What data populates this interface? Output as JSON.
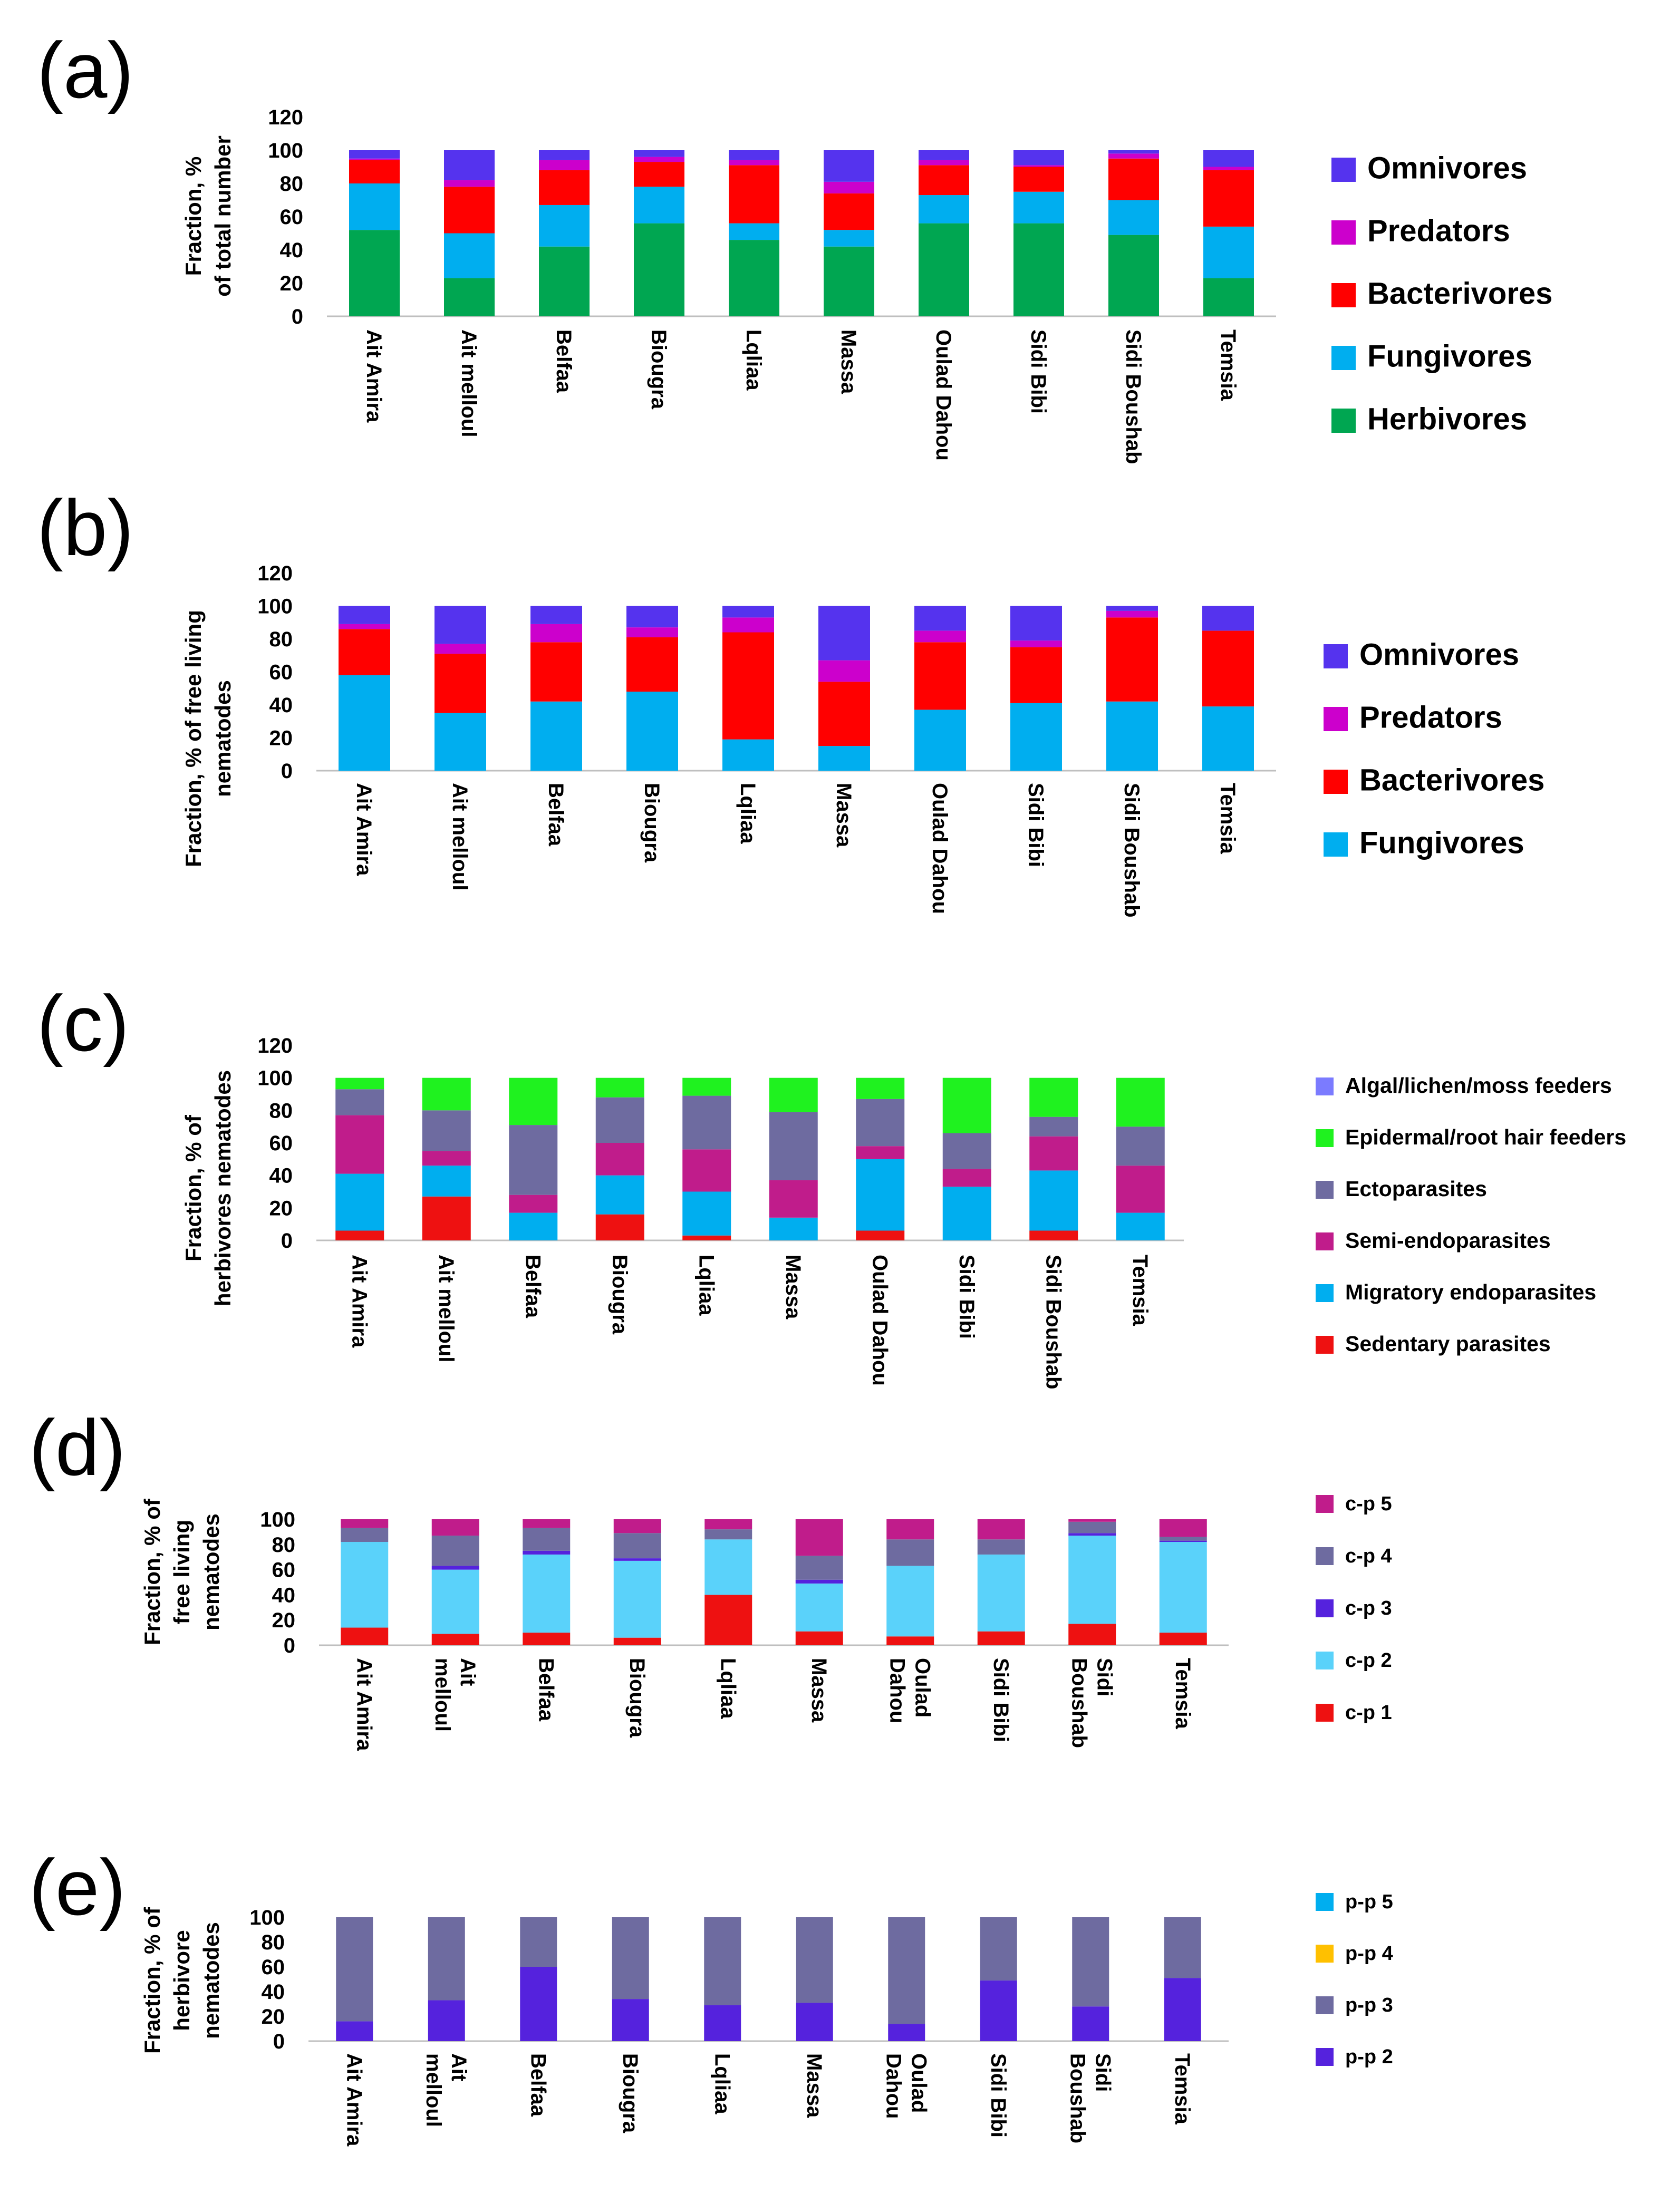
{
  "chart_data": [
    {
      "panel": "(a)",
      "type": "bar",
      "stacked": true,
      "ylabel": [
        "Fraction, %",
        "of total number"
      ],
      "ylim": [
        0,
        120
      ],
      "yticks": [
        0,
        20,
        40,
        60,
        80,
        100,
        120
      ],
      "categories": [
        "Ait Amira",
        "Ait melloul",
        "Belfaa",
        "Biougra",
        "Lqliaa",
        "Massa",
        "Oulad Dahou",
        "Sidi Bibi",
        "Sidi Boushab",
        "Temsia"
      ],
      "series": [
        {
          "name": "Herbivores",
          "color": "#00A651",
          "values": [
            52,
            23,
            42,
            56,
            46,
            42,
            56,
            56,
            49,
            23
          ]
        },
        {
          "name": "Fungivores",
          "color": "#00AEEF",
          "values": [
            28,
            27,
            25,
            22,
            10,
            10,
            17,
            19,
            21,
            31
          ]
        },
        {
          "name": "Bacterivores",
          "color": "#FF0000",
          "values": [
            14,
            28,
            21,
            15,
            35,
            22,
            18,
            15,
            25,
            34
          ]
        },
        {
          "name": "Predators",
          "color": "#CC00CC",
          "values": [
            1,
            4,
            6,
            3,
            3,
            7,
            3,
            1,
            3,
            2
          ]
        },
        {
          "name": "Omnivores",
          "color": "#5533EE",
          "values": [
            5,
            18,
            6,
            4,
            6,
            19,
            6,
            9,
            2,
            10
          ]
        }
      ],
      "legend_order": [
        "Omnivores",
        "Predators",
        "Bacterivores",
        "Fungivores",
        "Herbivores"
      ]
    },
    {
      "panel": "(b)",
      "type": "bar",
      "stacked": true,
      "ylabel": [
        "Fraction, % of free living",
        "nematodes"
      ],
      "ylim": [
        0,
        120
      ],
      "yticks": [
        0,
        20,
        40,
        60,
        80,
        100,
        120
      ],
      "categories": [
        "Ait Amira",
        "Ait melloul",
        "Belfaa",
        "Biougra",
        "Lqliaa",
        "Massa",
        "Oulad Dahou",
        "Sidi Bibi",
        "Sidi Boushab",
        "Temsia"
      ],
      "series": [
        {
          "name": "Fungivores",
          "color": "#00AEEF",
          "values": [
            58,
            35,
            42,
            48,
            19,
            15,
            37,
            41,
            42,
            39
          ]
        },
        {
          "name": "Bacterivores",
          "color": "#FF0000",
          "values": [
            28,
            36,
            36,
            33,
            65,
            39,
            41,
            34,
            51,
            46
          ]
        },
        {
          "name": "Predators",
          "color": "#CC00CC",
          "values": [
            3,
            6,
            11,
            6,
            9,
            13,
            7,
            4,
            4,
            0
          ]
        },
        {
          "name": "Omnivores",
          "color": "#5533EE",
          "values": [
            11,
            23,
            11,
            13,
            7,
            33,
            15,
            21,
            3,
            15
          ]
        }
      ],
      "legend_order": [
        "Omnivores",
        "Predators",
        "Bacterivores",
        "Fungivores"
      ]
    },
    {
      "panel": "(c)",
      "type": "bar",
      "stacked": true,
      "ylabel": [
        "Fraction, % of",
        "herbivores nematodes"
      ],
      "ylim": [
        0,
        120
      ],
      "yticks": [
        0,
        20,
        40,
        60,
        80,
        100,
        120
      ],
      "categories": [
        "Ait Amira",
        "Ait melloul",
        "Belfaa",
        "Biougra",
        "Lqliaa",
        "Massa",
        "Oulad Dahou",
        "Sidi Bibi",
        "Sidi Boushab",
        "Temsia"
      ],
      "series": [
        {
          "name": "Sedentary parasites",
          "color": "#EE1111",
          "values": [
            6,
            27,
            0,
            16,
            3,
            0,
            6,
            0,
            6,
            0
          ]
        },
        {
          "name": "Migratory endoparasites",
          "color": "#00AEEF",
          "values": [
            35,
            19,
            17,
            24,
            27,
            14,
            44,
            33,
            37,
            17
          ]
        },
        {
          "name": "Semi-endoparasites",
          "color": "#C01C8B",
          "values": [
            36,
            9,
            11,
            20,
            26,
            23,
            8,
            11,
            21,
            29
          ]
        },
        {
          "name": "Ectoparasites",
          "color": "#6E6BA0",
          "values": [
            16,
            25,
            43,
            28,
            33,
            42,
            29,
            22,
            12,
            24
          ]
        },
        {
          "name": "Epidermal/root hair feeders",
          "color": "#1FF21F",
          "values": [
            7,
            20,
            29,
            12,
            11,
            21,
            13,
            34,
            24,
            30
          ]
        },
        {
          "name": "Algal/lichen/moss feeders",
          "color": "#7B7BFF",
          "values": [
            0,
            0,
            0,
            0,
            0,
            0,
            0,
            0,
            0,
            0
          ]
        }
      ],
      "legend_order": [
        "Algal/lichen/moss feeders",
        "Epidermal/root hair feeders",
        "Ectoparasites",
        "Semi-endoparasites",
        "Migratory endoparasites",
        "Sedentary parasites"
      ]
    },
    {
      "panel": "(d)",
      "type": "bar",
      "stacked": true,
      "ylabel": [
        "Fraction, % of",
        "free living",
        "nematodes"
      ],
      "ylim": [
        0,
        100
      ],
      "yticks": [
        0,
        20,
        40,
        60,
        80,
        100
      ],
      "categories": [
        "Ait Amira",
        "Ait melloul",
        "Belfaa",
        "Biougra",
        "Lqliaa",
        "Massa",
        "Oulad Dahou",
        "Sidi Bibi",
        "Sidi Boushab",
        "Temsia"
      ],
      "category_lines": [
        [
          "Ait Amira"
        ],
        [
          "Ait",
          "melloul"
        ],
        [
          "Belfaa"
        ],
        [
          "Biougra"
        ],
        [
          "Lqliaa"
        ],
        [
          "Massa"
        ],
        [
          "Oulad",
          "Dahou"
        ],
        [
          "Sidi Bibi"
        ],
        [
          "Sidi",
          "Boushab"
        ],
        [
          "Temsia"
        ]
      ],
      "series": [
        {
          "name": "c-p 1",
          "color": "#EE1111",
          "values": [
            14,
            9,
            10,
            6,
            40,
            11,
            7,
            11,
            17,
            10
          ]
        },
        {
          "name": "c-p 2",
          "color": "#5AD2FA",
          "values": [
            68,
            51,
            62,
            61,
            44,
            38,
            56,
            61,
            70,
            72
          ]
        },
        {
          "name": "c-p 3",
          "color": "#5522DD",
          "values": [
            0,
            3,
            3,
            2,
            0,
            3,
            0,
            0,
            2,
            1
          ]
        },
        {
          "name": "c-p 4",
          "color": "#6E6BA0",
          "values": [
            11,
            24,
            18,
            20,
            8,
            19,
            21,
            12,
            9,
            3
          ]
        },
        {
          "name": "c-p 5",
          "color": "#C01C8B",
          "values": [
            7,
            13,
            7,
            11,
            8,
            29,
            16,
            16,
            2,
            14
          ]
        }
      ],
      "legend_order": [
        "c-p 5",
        "c-p 4",
        "c-p 3",
        "c-p 2",
        "c-p 1"
      ]
    },
    {
      "panel": "(e)",
      "type": "bar",
      "stacked": true,
      "ylabel": [
        "Fraction, % of",
        "herbivore",
        "nematodes"
      ],
      "ylim": [
        0,
        100
      ],
      "yticks": [
        0,
        20,
        40,
        60,
        80,
        100
      ],
      "categories": [
        "Ait Amira",
        "Ait melloul",
        "Belfaa",
        "Biougra",
        "Lqliaa",
        "Massa",
        "Oulad Dahou",
        "Sidi Bibi",
        "Sidi Boushab",
        "Temsia"
      ],
      "category_lines": [
        [
          "Ait Amira"
        ],
        [
          "Ait",
          "melloul"
        ],
        [
          "Belfaa"
        ],
        [
          "Biougra"
        ],
        [
          "Lqliaa"
        ],
        [
          "Massa"
        ],
        [
          "Oulad",
          "Dahou"
        ],
        [
          "Sidi Bibi"
        ],
        [
          "Sidi",
          "Boushab"
        ],
        [
          "Temsia"
        ]
      ],
      "series": [
        {
          "name": "p-p 2",
          "color": "#5522DD",
          "values": [
            16,
            33,
            60,
            34,
            29,
            31,
            14,
            49,
            28,
            51
          ]
        },
        {
          "name": "p-p 3",
          "color": "#6E6BA0",
          "values": [
            84,
            67,
            40,
            66,
            71,
            69,
            86,
            51,
            72,
            49
          ]
        },
        {
          "name": "p-p 4",
          "color": "#FFC000",
          "values": [
            0,
            0,
            0,
            0,
            0,
            0,
            0,
            0,
            0,
            0
          ]
        },
        {
          "name": "p-p 5",
          "color": "#00AEEF",
          "values": [
            0,
            0,
            0,
            0,
            0,
            0,
            0,
            0,
            0,
            0
          ]
        }
      ],
      "legend_order": [
        "p-p 5",
        "p-p 4",
        "p-p 3",
        "p-p 2"
      ]
    }
  ]
}
